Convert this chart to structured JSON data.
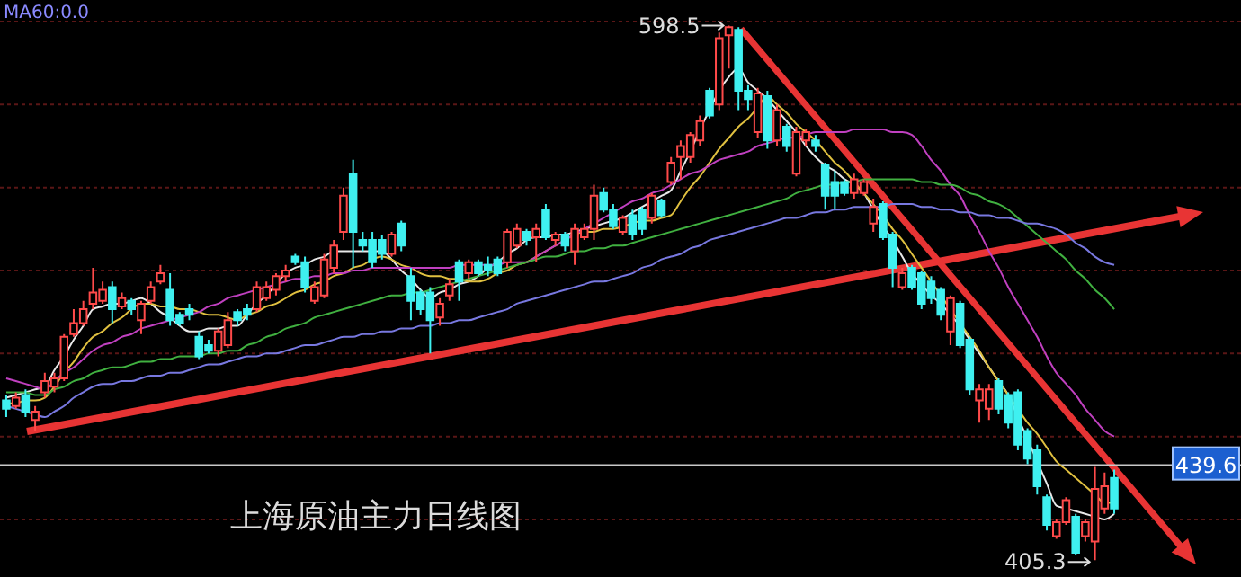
{
  "chart_data": {
    "type": "candlestick",
    "title": "上海原油主力日线图",
    "categories": [
      null,
      null,
      null,
      null,
      null,
      null,
      null,
      null,
      null,
      null,
      null,
      null,
      null,
      null,
      null,
      null,
      null,
      null,
      null,
      null,
      null,
      null,
      null,
      null,
      null,
      null,
      null,
      null,
      null,
      null,
      null,
      null,
      null,
      null,
      null,
      null,
      null,
      null,
      null,
      null,
      null,
      null,
      null,
      null,
      null,
      null,
      null,
      null,
      null,
      null,
      null,
      null,
      null,
      null,
      null,
      null,
      null,
      null,
      null,
      null,
      null,
      null,
      null,
      null,
      null,
      null,
      null,
      null,
      null,
      null,
      null,
      null,
      null,
      null,
      null,
      null,
      null,
      null,
      null,
      null,
      null,
      null,
      null,
      null,
      null,
      null,
      null,
      null,
      null,
      null,
      null,
      null,
      null,
      null,
      null,
      null,
      null,
      null,
      null,
      null,
      null,
      null,
      null,
      null,
      null,
      null,
      null,
      null,
      null,
      null,
      null,
      null,
      null,
      null,
      null,
      null
    ],
    "ohlc": [
      [
        463,
        465,
        457,
        460
      ],
      [
        461,
        466,
        460,
        464
      ],
      [
        465,
        467,
        457,
        459
      ],
      [
        456,
        461,
        452,
        459
      ],
      [
        466,
        473,
        464,
        470
      ],
      [
        468,
        473,
        466,
        471
      ],
      [
        471,
        487,
        470,
        486
      ],
      [
        487,
        496,
        486,
        491
      ],
      [
        491,
        499,
        490,
        496
      ],
      [
        498,
        511,
        496,
        502
      ],
      [
        499,
        506,
        498,
        503
      ],
      [
        504,
        506,
        491,
        496
      ],
      [
        497,
        502,
        496,
        500
      ],
      [
        499,
        500,
        494,
        496
      ],
      [
        492,
        499,
        487,
        498
      ],
      [
        499,
        506,
        498,
        504
      ],
      [
        506,
        512,
        505,
        509
      ],
      [
        503,
        509,
        490,
        492
      ],
      [
        494,
        495,
        490,
        491
      ],
      [
        496,
        498,
        492,
        494
      ],
      [
        486,
        488,
        478,
        479
      ],
      [
        483,
        485,
        480,
        481
      ],
      [
        481,
        489,
        479,
        488
      ],
      [
        483,
        495,
        482,
        492
      ],
      [
        495,
        496,
        490,
        492
      ],
      [
        496,
        498,
        492,
        494
      ],
      [
        496,
        506,
        495,
        504
      ],
      [
        500,
        506,
        499,
        504
      ],
      [
        503,
        509,
        501,
        508
      ],
      [
        508,
        512,
        506,
        510
      ],
      [
        515,
        516,
        512,
        513
      ],
      [
        513,
        515,
        502,
        504
      ],
      [
        499,
        506,
        498,
        504
      ],
      [
        501,
        516,
        500,
        514
      ],
      [
        511,
        521,
        509,
        519
      ],
      [
        524,
        540,
        521,
        537
      ],
      [
        545,
        550,
        511,
        524
      ],
      [
        521,
        524,
        517,
        519
      ],
      [
        521,
        524,
        511,
        513
      ],
      [
        521,
        523,
        514,
        516
      ],
      [
        516,
        524,
        515,
        523
      ],
      [
        527,
        528,
        517,
        519
      ],
      [
        508,
        511,
        492,
        499
      ],
      [
        502,
        503,
        494,
        496
      ],
      [
        502,
        504,
        480,
        492
      ],
      [
        493,
        500,
        490,
        498
      ],
      [
        501,
        507,
        499,
        505
      ],
      [
        513,
        514,
        499,
        506
      ],
      [
        509,
        514,
        507,
        513
      ],
      [
        513,
        514,
        508,
        509
      ],
      [
        512,
        515,
        508,
        510
      ],
      [
        514,
        515,
        508,
        509
      ],
      [
        513,
        525,
        511,
        524
      ],
      [
        519,
        527,
        518,
        525
      ],
      [
        524,
        525,
        519,
        521
      ],
      [
        522,
        527,
        513,
        525
      ],
      [
        532,
        534,
        521,
        522
      ],
      [
        521,
        524,
        519,
        523
      ],
      [
        523,
        524,
        517,
        519
      ],
      [
        517,
        527,
        512,
        525
      ],
      [
        522,
        527,
        521,
        525
      ],
      [
        525,
        541,
        521,
        537
      ],
      [
        538,
        540,
        531,
        532
      ],
      [
        532,
        534,
        525,
        526
      ],
      [
        524,
        530,
        523,
        529
      ],
      [
        530,
        532,
        521,
        523
      ],
      [
        532,
        533,
        523,
        525
      ],
      [
        529,
        538,
        527,
        537
      ],
      [
        535,
        536,
        529,
        530
      ],
      [
        542,
        551,
        541,
        549
      ],
      [
        551,
        557,
        543,
        555
      ],
      [
        551,
        560,
        549,
        559
      ],
      [
        557,
        566,
        555,
        564
      ],
      [
        575,
        576,
        565,
        566
      ],
      [
        570,
        596,
        568,
        594
      ],
      [
        595,
        598.5,
        583,
        598
      ],
      [
        597,
        598,
        568,
        575
      ],
      [
        575,
        577,
        568,
        572
      ],
      [
        560,
        576,
        558,
        574
      ],
      [
        573,
        575,
        554,
        557
      ],
      [
        557,
        570,
        555,
        568
      ],
      [
        562,
        563,
        553,
        555
      ],
      [
        545,
        562,
        544,
        560
      ],
      [
        557,
        561,
        555,
        560
      ],
      [
        557,
        559,
        553,
        555
      ],
      [
        548,
        549,
        532,
        537
      ],
      [
        542,
        546,
        532,
        537
      ],
      [
        542,
        543,
        537,
        538
      ],
      [
        538,
        545,
        536,
        543
      ],
      [
        538,
        543,
        537,
        542
      ],
      [
        527,
        536,
        524,
        533
      ],
      [
        534,
        535,
        521,
        522
      ],
      [
        523,
        524,
        504,
        511
      ],
      [
        504,
        511,
        503,
        509
      ],
      [
        511,
        512,
        503,
        504
      ],
      [
        509,
        510,
        496,
        498
      ],
      [
        506,
        508,
        498,
        500
      ],
      [
        503,
        504,
        492,
        494
      ],
      [
        488,
        501,
        483,
        500
      ],
      [
        498,
        499,
        482,
        483
      ],
      [
        485,
        486,
        465,
        467
      ],
      [
        463,
        469,
        455,
        467
      ],
      [
        460,
        469,
        456,
        467
      ],
      [
        470,
        471,
        458,
        460
      ],
      [
        465,
        466,
        453,
        455
      ],
      [
        466,
        467,
        445,
        447
      ],
      [
        452,
        453,
        440,
        442
      ],
      [
        445,
        447,
        429,
        432
      ],
      [
        428,
        429,
        416,
        418
      ],
      [
        414,
        420,
        413,
        419
      ],
      [
        419,
        428,
        418,
        427
      ],
      [
        421,
        422,
        407,
        408
      ],
      [
        414,
        420,
        412,
        419
      ],
      [
        412,
        439,
        405.3,
        431
      ],
      [
        424,
        437,
        422,
        432
      ],
      [
        435,
        438,
        422,
        424
      ]
    ],
    "series": [
      {
        "type": "line",
        "color": "#e8e8e8",
        "values": [
          464,
          465,
          466,
          467,
          468,
          474,
          479,
          485,
          490,
          496,
          497,
          498,
          498,
          499,
          500,
          498,
          495,
          493,
          490,
          488,
          488,
          489,
          489,
          490,
          490,
          494,
          498,
          501,
          505,
          509,
          511,
          512,
          514,
          515,
          517,
          517,
          517,
          517,
          517,
          517,
          514,
          510,
          507,
          503,
          500,
          502,
          503,
          505,
          506,
          508,
          511,
          513,
          516,
          518,
          521,
          522,
          522,
          523,
          523,
          524,
          525,
          526,
          527,
          528,
          529,
          531,
          533,
          535,
          537,
          539,
          546,
          553,
          561,
          568,
          575,
          580,
          583,
          578,
          575,
          572,
          568,
          564,
          560,
          555,
          551,
          548,
          546,
          543,
          541,
          538,
          532,
          526,
          521,
          515,
          509,
          505,
          501,
          498,
          494,
          490,
          485,
          480,
          475,
          470,
          465,
          457,
          449,
          441,
          433,
          425,
          424,
          423,
          422,
          421,
          420,
          422
        ]
      },
      {
        "type": "line",
        "color": "#e0c040",
        "values": [
          462,
          462,
          463,
          463,
          464,
          468,
          473,
          477,
          482,
          486,
          488,
          491,
          493,
          496,
          498,
          498,
          497,
          497,
          496,
          496,
          495,
          494,
          494,
          493,
          492,
          494,
          495,
          497,
          498,
          500,
          502,
          503,
          505,
          506,
          508,
          509,
          511,
          512,
          514,
          515,
          514,
          512,
          511,
          509,
          508,
          508,
          507,
          507,
          506,
          506,
          507,
          509,
          510,
          512,
          513,
          515,
          517,
          519,
          521,
          523,
          524,
          524,
          525,
          525,
          526,
          527,
          528,
          528,
          529,
          530,
          535,
          540,
          544,
          549,
          554,
          558,
          562,
          565,
          569,
          573,
          570,
          567,
          563,
          560,
          557,
          553,
          549,
          546,
          542,
          538,
          534,
          530,
          525,
          521,
          516,
          511,
          506,
          501,
          496,
          491,
          486,
          481,
          475,
          470,
          465,
          460,
          455,
          451,
          446,
          441,
          438,
          435,
          432,
          429,
          426,
          426
        ]
      },
      {
        "type": "line",
        "color": "#c040c0",
        "values": [
          471,
          470,
          469,
          468,
          467,
          470,
          473,
          475,
          478,
          481,
          483,
          484,
          486,
          487,
          489,
          490,
          491,
          492,
          493,
          494,
          495,
          497,
          498,
          500,
          501,
          502,
          503,
          504,
          505,
          506,
          507,
          507,
          508,
          508,
          509,
          509,
          510,
          510,
          511,
          511,
          511,
          511,
          511,
          511,
          511,
          511,
          511,
          512,
          512,
          512,
          512,
          512,
          513,
          513,
          513,
          515,
          517,
          519,
          521,
          523,
          525,
          527,
          529,
          531,
          533,
          535,
          536,
          538,
          539,
          541,
          543,
          545,
          546,
          548,
          550,
          551,
          552,
          553,
          555,
          556,
          557,
          558,
          558,
          559,
          560,
          560,
          560,
          560,
          561,
          561,
          561,
          561,
          560,
          560,
          559,
          555,
          550,
          546,
          541,
          537,
          530,
          524,
          517,
          511,
          504,
          498,
          492,
          486,
          479,
          473,
          469,
          465,
          460,
          456,
          452,
          450
        ]
      },
      {
        "type": "line",
        "color": "#40b040",
        "values": [
          466,
          466,
          466,
          465,
          465,
          467,
          468,
          470,
          471,
          473,
          474,
          475,
          475,
          476,
          477,
          477,
          478,
          478,
          479,
          479,
          479,
          480,
          480,
          481,
          481,
          483,
          484,
          486,
          487,
          489,
          490,
          491,
          493,
          494,
          495,
          496,
          497,
          498,
          499,
          500,
          501,
          501,
          502,
          502,
          503,
          504,
          505,
          506,
          507,
          508,
          509,
          510,
          511,
          512,
          513,
          514,
          515,
          515,
          516,
          517,
          517,
          518,
          518,
          519,
          519,
          520,
          521,
          522,
          523,
          524,
          525,
          526,
          527,
          528,
          529,
          530,
          531,
          532,
          533,
          534,
          535,
          536,
          538,
          539,
          540,
          541,
          541,
          542,
          542,
          543,
          543,
          543,
          543,
          543,
          543,
          542,
          542,
          541,
          541,
          540,
          538,
          537,
          535,
          534,
          532,
          529,
          526,
          523,
          520,
          517,
          514,
          510,
          507,
          503,
          500,
          496
        ]
      },
      {
        "type": "line",
        "color": "#7878e0",
        "values": [
          461,
          460,
          459,
          458,
          457,
          459,
          461,
          464,
          466,
          468,
          469,
          469,
          470,
          470,
          471,
          472,
          472,
          473,
          473,
          474,
          475,
          476,
          476,
          477,
          478,
          479,
          479,
          480,
          480,
          481,
          482,
          483,
          483,
          484,
          485,
          486,
          486,
          487,
          487,
          488,
          488,
          489,
          489,
          490,
          490,
          491,
          491,
          492,
          492,
          493,
          494,
          495,
          496,
          498,
          499,
          500,
          501,
          502,
          503,
          504,
          505,
          506,
          506,
          507,
          508,
          509,
          511,
          512,
          514,
          515,
          516,
          518,
          519,
          521,
          522,
          523,
          524,
          525,
          526,
          527,
          528,
          529,
          529,
          530,
          531,
          531,
          532,
          532,
          533,
          533,
          533,
          533,
          534,
          534,
          534,
          533,
          533,
          532,
          532,
          531,
          531,
          530,
          530,
          529,
          529,
          528,
          527,
          527,
          526,
          525,
          523,
          520,
          518,
          515,
          513,
          512
        ]
      }
    ],
    "yticks": [
      {
        "value": 420,
        "label": null
      },
      {
        "value": 450,
        "label": null
      },
      {
        "value": 480,
        "label": null
      },
      {
        "value": 510,
        "label": null
      },
      {
        "value": 540,
        "label": null
      },
      {
        "value": 570,
        "label": null
      },
      {
        "value": 600,
        "label": null
      }
    ],
    "grid": "y",
    "ref_lines": [
      {
        "axis": "y",
        "value": 439.6,
        "label": "439.6",
        "color": "#c8c8c8"
      }
    ],
    "annotations": [
      "MA60:0.0",
      "598.5",
      "405.3"
    ]
  }
}
